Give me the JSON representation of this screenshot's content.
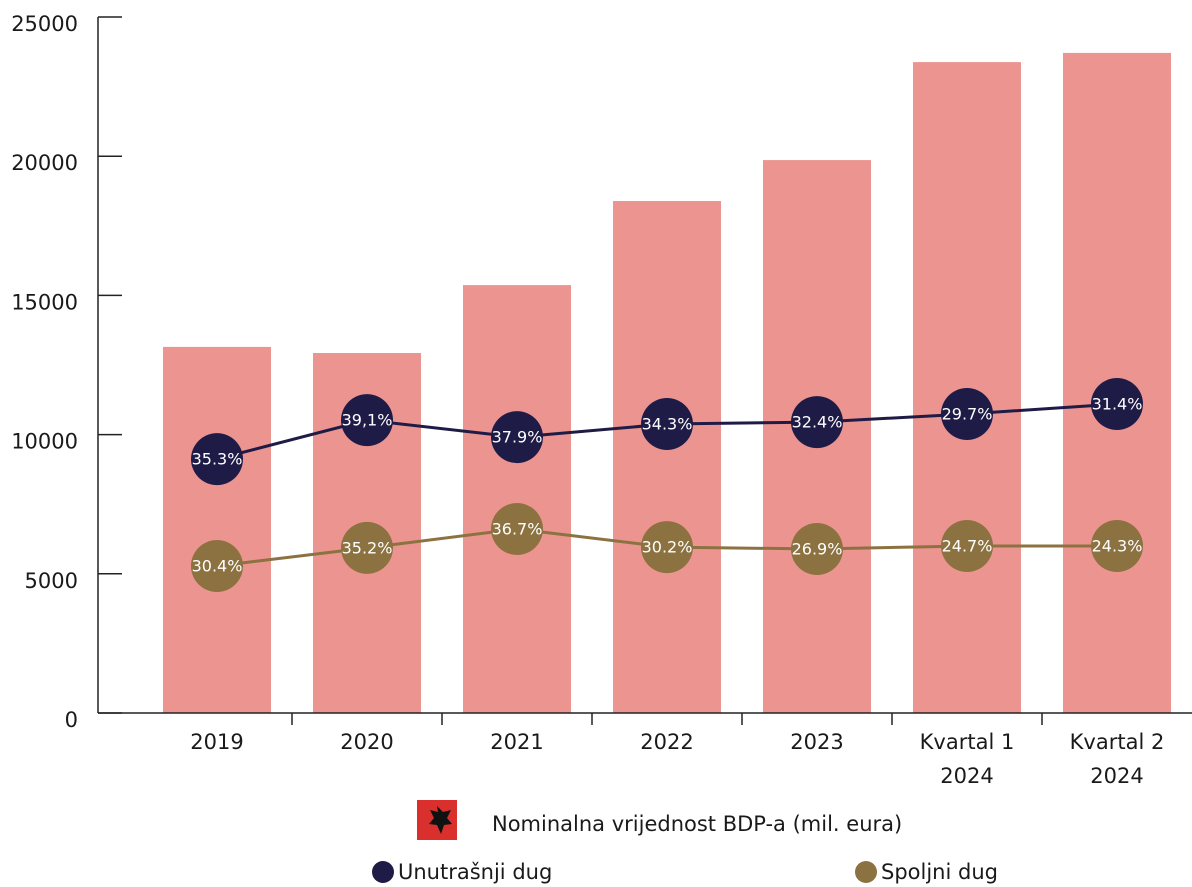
{
  "chart_data": {
    "type": "bar",
    "categories": [
      "2019",
      "2020",
      "2021",
      "2022",
      "2023",
      "Kvartal 1\n2024",
      "Kvartal 2\n2024"
    ],
    "ylim": [
      0,
      25000
    ],
    "yticks": [
      0,
      5000,
      10000,
      15000,
      20000,
      25000
    ],
    "bar_series": {
      "name": "Nominalna vrijednost BDP-a (mil. eura)",
      "color": "#ec9490",
      "values": [
        13150,
        12930,
        15370,
        18390,
        19860,
        23380,
        23710
      ]
    },
    "series": [
      {
        "name": "Unutrašnji dug",
        "color": "#1f1b47",
        "values": [
          9120,
          10520,
          9910,
          10380,
          10450,
          10740,
          11100
        ],
        "labels": [
          "35.3%",
          "39,1%",
          "37.9%",
          "34.3%",
          "32.4%",
          "29.7%",
          "31.4%"
        ]
      },
      {
        "name": "Spoljni dug",
        "color": "#8c7240",
        "values": [
          5280,
          5930,
          6610,
          5960,
          5890,
          6000,
          6000
        ],
        "labels": [
          "30.4%",
          "35.2%",
          "36.7%",
          "30.2%",
          "26.9%",
          "24.7%",
          "24.3%"
        ]
      }
    ]
  }
}
